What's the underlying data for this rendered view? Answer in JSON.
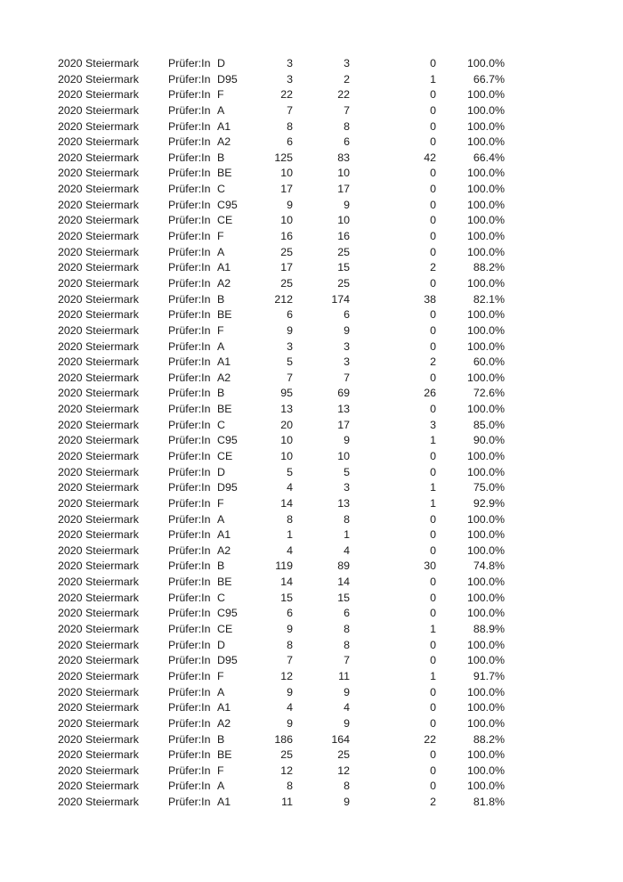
{
  "rows": [
    [
      "2020 Steiermark",
      "Prüfer:In",
      "D",
      "3",
      "3",
      "0",
      "100.0%"
    ],
    [
      "2020 Steiermark",
      "Prüfer:In",
      "D95",
      "3",
      "2",
      "1",
      "66.7%"
    ],
    [
      "2020 Steiermark",
      "Prüfer:In",
      "F",
      "22",
      "22",
      "0",
      "100.0%"
    ],
    [
      "2020 Steiermark",
      "Prüfer:In",
      "A",
      "7",
      "7",
      "0",
      "100.0%"
    ],
    [
      "2020 Steiermark",
      "Prüfer:In",
      "A1",
      "8",
      "8",
      "0",
      "100.0%"
    ],
    [
      "2020 Steiermark",
      "Prüfer:In",
      "A2",
      "6",
      "6",
      "0",
      "100.0%"
    ],
    [
      "2020 Steiermark",
      "Prüfer:In",
      "B",
      "125",
      "83",
      "42",
      "66.4%"
    ],
    [
      "2020 Steiermark",
      "Prüfer:In",
      "BE",
      "10",
      "10",
      "0",
      "100.0%"
    ],
    [
      "2020 Steiermark",
      "Prüfer:In",
      "C",
      "17",
      "17",
      "0",
      "100.0%"
    ],
    [
      "2020 Steiermark",
      "Prüfer:In",
      "C95",
      "9",
      "9",
      "0",
      "100.0%"
    ],
    [
      "2020 Steiermark",
      "Prüfer:In",
      "CE",
      "10",
      "10",
      "0",
      "100.0%"
    ],
    [
      "2020 Steiermark",
      "Prüfer:In",
      "F",
      "16",
      "16",
      "0",
      "100.0%"
    ],
    [
      "2020 Steiermark",
      "Prüfer:In",
      "A",
      "25",
      "25",
      "0",
      "100.0%"
    ],
    [
      "2020 Steiermark",
      "Prüfer:In",
      "A1",
      "17",
      "15",
      "2",
      "88.2%"
    ],
    [
      "2020 Steiermark",
      "Prüfer:In",
      "A2",
      "25",
      "25",
      "0",
      "100.0%"
    ],
    [
      "2020 Steiermark",
      "Prüfer:In",
      "B",
      "212",
      "174",
      "38",
      "82.1%"
    ],
    [
      "2020 Steiermark",
      "Prüfer:In",
      "BE",
      "6",
      "6",
      "0",
      "100.0%"
    ],
    [
      "2020 Steiermark",
      "Prüfer:In",
      "F",
      "9",
      "9",
      "0",
      "100.0%"
    ],
    [
      "2020 Steiermark",
      "Prüfer:In",
      "A",
      "3",
      "3",
      "0",
      "100.0%"
    ],
    [
      "2020 Steiermark",
      "Prüfer:In",
      "A1",
      "5",
      "3",
      "2",
      "60.0%"
    ],
    [
      "2020 Steiermark",
      "Prüfer:In",
      "A2",
      "7",
      "7",
      "0",
      "100.0%"
    ],
    [
      "2020 Steiermark",
      "Prüfer:In",
      "B",
      "95",
      "69",
      "26",
      "72.6%"
    ],
    [
      "2020 Steiermark",
      "Prüfer:In",
      "BE",
      "13",
      "13",
      "0",
      "100.0%"
    ],
    [
      "2020 Steiermark",
      "Prüfer:In",
      "C",
      "20",
      "17",
      "3",
      "85.0%"
    ],
    [
      "2020 Steiermark",
      "Prüfer:In",
      "C95",
      "10",
      "9",
      "1",
      "90.0%"
    ],
    [
      "2020 Steiermark",
      "Prüfer:In",
      "CE",
      "10",
      "10",
      "0",
      "100.0%"
    ],
    [
      "2020 Steiermark",
      "Prüfer:In",
      "D",
      "5",
      "5",
      "0",
      "100.0%"
    ],
    [
      "2020 Steiermark",
      "Prüfer:In",
      "D95",
      "4",
      "3",
      "1",
      "75.0%"
    ],
    [
      "2020 Steiermark",
      "Prüfer:In",
      "F",
      "14",
      "13",
      "1",
      "92.9%"
    ],
    [
      "2020 Steiermark",
      "Prüfer:In",
      "A",
      "8",
      "8",
      "0",
      "100.0%"
    ],
    [
      "2020 Steiermark",
      "Prüfer:In",
      "A1",
      "1",
      "1",
      "0",
      "100.0%"
    ],
    [
      "2020 Steiermark",
      "Prüfer:In",
      "A2",
      "4",
      "4",
      "0",
      "100.0%"
    ],
    [
      "2020 Steiermark",
      "Prüfer:In",
      "B",
      "119",
      "89",
      "30",
      "74.8%"
    ],
    [
      "2020 Steiermark",
      "Prüfer:In",
      "BE",
      "14",
      "14",
      "0",
      "100.0%"
    ],
    [
      "2020 Steiermark",
      "Prüfer:In",
      "C",
      "15",
      "15",
      "0",
      "100.0%"
    ],
    [
      "2020 Steiermark",
      "Prüfer:In",
      "C95",
      "6",
      "6",
      "0",
      "100.0%"
    ],
    [
      "2020 Steiermark",
      "Prüfer:In",
      "CE",
      "9",
      "8",
      "1",
      "88.9%"
    ],
    [
      "2020 Steiermark",
      "Prüfer:In",
      "D",
      "8",
      "8",
      "0",
      "100.0%"
    ],
    [
      "2020 Steiermark",
      "Prüfer:In",
      "D95",
      "7",
      "7",
      "0",
      "100.0%"
    ],
    [
      "2020 Steiermark",
      "Prüfer:In",
      "F",
      "12",
      "11",
      "1",
      "91.7%"
    ],
    [
      "2020 Steiermark",
      "Prüfer:In",
      "A",
      "9",
      "9",
      "0",
      "100.0%"
    ],
    [
      "2020 Steiermark",
      "Prüfer:In",
      "A1",
      "4",
      "4",
      "0",
      "100.0%"
    ],
    [
      "2020 Steiermark",
      "Prüfer:In",
      "A2",
      "9",
      "9",
      "0",
      "100.0%"
    ],
    [
      "2020 Steiermark",
      "Prüfer:In",
      "B",
      "186",
      "164",
      "22",
      "88.2%"
    ],
    [
      "2020 Steiermark",
      "Prüfer:In",
      "BE",
      "25",
      "25",
      "0",
      "100.0%"
    ],
    [
      "2020 Steiermark",
      "Prüfer:In",
      "F",
      "12",
      "12",
      "0",
      "100.0%"
    ],
    [
      "2020 Steiermark",
      "Prüfer:In",
      "A",
      "8",
      "8",
      "0",
      "100.0%"
    ],
    [
      "2020 Steiermark",
      "Prüfer:In",
      "A1",
      "11",
      "9",
      "2",
      "81.8%"
    ]
  ]
}
